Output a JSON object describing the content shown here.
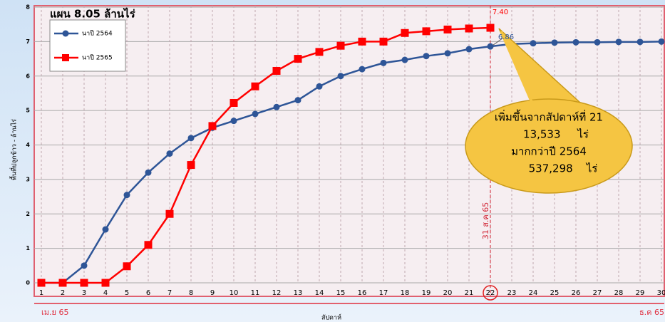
{
  "chart_data": {
    "type": "line",
    "title": "แผน  8.05 ล้านไร่",
    "y_label": "พื้นที่ปลูกข้าว - ล้านไร่",
    "x_label": "สัปดาห์",
    "x_start_label": "เม.ย 65",
    "x_end_label": "ธ.ค 65",
    "x": [
      1,
      2,
      3,
      4,
      5,
      6,
      7,
      8,
      9,
      10,
      11,
      12,
      13,
      14,
      15,
      16,
      17,
      18,
      19,
      20,
      21,
      22,
      23,
      24,
      25,
      26,
      27,
      28,
      29,
      30
    ],
    "xlim": [
      1,
      30
    ],
    "xticks": [
      1,
      2,
      3,
      4,
      5,
      6,
      7,
      8,
      9,
      10,
      11,
      12,
      13,
      14,
      15,
      16,
      17,
      18,
      19,
      20,
      21,
      22,
      23,
      24,
      25,
      26,
      27,
      28,
      29,
      30
    ],
    "ylim": [
      0,
      8
    ],
    "yticks": [
      0,
      1,
      2,
      3,
      4,
      5,
      6,
      7,
      8
    ],
    "grid": true,
    "legend": "top-left",
    "series": [
      {
        "name": "นาปี 2564",
        "color": "#2e5597",
        "marker": "circle",
        "values": [
          0,
          0,
          0.5,
          1.55,
          2.55,
          3.2,
          3.75,
          4.2,
          4.5,
          4.7,
          4.9,
          5.1,
          5.3,
          5.7,
          6.0,
          6.2,
          6.38,
          6.47,
          6.58,
          6.66,
          6.78,
          6.86,
          6.93,
          6.95,
          6.97,
          6.98,
          6.98,
          6.99,
          6.99,
          7.0
        ],
        "value_labels": [
          null,
          null,
          null,
          null,
          null,
          null,
          null,
          null,
          null,
          null,
          null,
          null,
          null,
          null,
          null,
          null,
          null,
          null,
          null,
          null,
          null,
          "6.86",
          null,
          null,
          null,
          null,
          null,
          null,
          null,
          null
        ]
      },
      {
        "name": "นาปี 2565",
        "color": "#ff0000",
        "marker": "square",
        "values": [
          0,
          0,
          0,
          0,
          0.48,
          1.1,
          2.0,
          3.42,
          4.55,
          5.22,
          5.7,
          6.15,
          6.5,
          6.7,
          6.88,
          7.0,
          7.0,
          7.25,
          7.3,
          7.35,
          7.38,
          7.4,
          null,
          null,
          null,
          null,
          null,
          null,
          null,
          null
        ],
        "value_labels": [
          null,
          null,
          null,
          null,
          null,
          null,
          null,
          null,
          null,
          null,
          null,
          null,
          null,
          null,
          null,
          null,
          null,
          null,
          null,
          null,
          null,
          "7.40",
          null,
          null,
          null,
          null,
          null,
          null,
          null,
          null
        ]
      }
    ],
    "vline": {
      "x": 22,
      "label": "31 ส.ค 65"
    },
    "callout": [
      "เพิ่มขึ้นจากสัปดาห์ที่ 21",
      "13,533     ไร่",
      "มากกว่าปี 2564",
      "537,298    ไร่"
    ]
  }
}
